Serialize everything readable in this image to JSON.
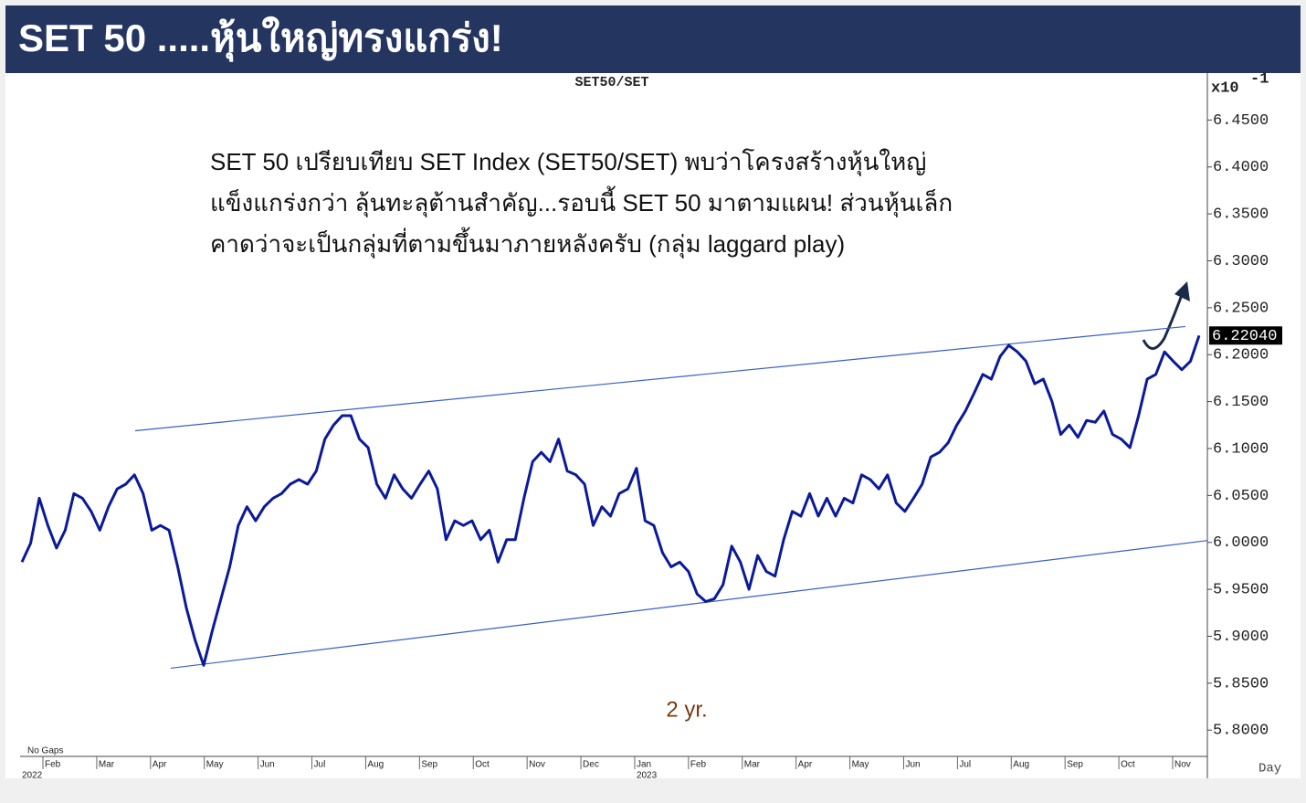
{
  "header": {
    "title": "SET 50 .....หุ้นใหญ่ทรงแกร่ง!"
  },
  "chart_data": {
    "type": "line",
    "title": "SET50/SET",
    "annotation_lines": [
      "SET 50 เปรียบเทียบ SET Index (SET50/SET) พบว่าโครงสร้างหุ้นใหญ่",
      "แข็งแกร่งกว่า ลุ้นทะลุต้านสำคัญ...รอบนี้ SET 50 มาตามแผน! ส่วนหุ้นเล็ก",
      "คาดว่าจะเป็นกลุ่มที่ตามขึ้นมาภายหลังครับ (กลุ่ม laggard play)"
    ],
    "period_label": "2 yr.",
    "gaps_label": "No Gaps",
    "x_unit_label": "Day",
    "axis_multiplier": "x10",
    "axis_exponent": "-1",
    "months": [
      "Feb",
      "Mar",
      "Apr",
      "May",
      "Jun",
      "Jul",
      "Aug",
      "Sep",
      "Oct",
      "Nov",
      "Dec",
      "Jan",
      "Feb",
      "Mar",
      "Apr",
      "May",
      "Jun",
      "Jul",
      "Aug",
      "Sep",
      "Oct",
      "Nov"
    ],
    "years": [
      "2022",
      "2023"
    ],
    "color": "#0a1a9a",
    "trendline_color": "#3a5fc8",
    "values": [
      5.979,
      5.999,
      6.047,
      6.018,
      5.994,
      6.013,
      6.052,
      6.047,
      6.033,
      6.013,
      6.038,
      6.057,
      6.062,
      6.072,
      6.052,
      6.013,
      6.018,
      6.013,
      5.974,
      5.93,
      5.896,
      5.869,
      5.906,
      5.94,
      5.974,
      6.018,
      6.038,
      6.023,
      6.038,
      6.047,
      6.052,
      6.062,
      6.067,
      6.062,
      6.076,
      6.11,
      6.125,
      6.135,
      6.135,
      6.11,
      6.101,
      6.062,
      6.047,
      6.072,
      6.057,
      6.047,
      6.062,
      6.076,
      6.057,
      6.003,
      6.023,
      6.018,
      6.023,
      6.003,
      6.013,
      5.979,
      6.003,
      6.003,
      6.047,
      6.086,
      6.096,
      6.086,
      6.11,
      6.076,
      6.072,
      6.062,
      6.018,
      6.038,
      6.028,
      6.052,
      6.057,
      6.079,
      6.023,
      6.018,
      5.989,
      5.974,
      5.979,
      5.969,
      5.945,
      5.937,
      5.94,
      5.955,
      5.996,
      5.979,
      5.95,
      5.986,
      5.969,
      5.964,
      6.003,
      6.033,
      6.028,
      6.052,
      6.028,
      6.047,
      6.028,
      6.047,
      6.042,
      6.072,
      6.067,
      6.057,
      6.072,
      6.042,
      6.033,
      6.047,
      6.062,
      6.091,
      6.096,
      6.106,
      6.125,
      6.14,
      6.159,
      6.179,
      6.174,
      6.198,
      6.21,
      6.203,
      6.193,
      6.169,
      6.174,
      6.15,
      6.115,
      6.125,
      6.112,
      6.13,
      6.128,
      6.14,
      6.115,
      6.11,
      6.101,
      6.135,
      6.174,
      6.179,
      6.203,
      6.193,
      6.184,
      6.193,
      6.2204
    ],
    "last_label": {
      "value": 6.2204,
      "label": "6.22040"
    },
    "trendlines": [
      {
        "start": 6.119,
        "end": 6.23
      },
      {
        "start": 5.866,
        "end": 6.002
      }
    ],
    "ylim": [
      5.772,
      6.5
    ],
    "yticks": [
      {
        "value": 5.8,
        "label": "5.8000"
      },
      {
        "value": 5.85,
        "label": "5.8500"
      },
      {
        "value": 5.9,
        "label": "5.9000"
      },
      {
        "value": 5.95,
        "label": "5.9500"
      },
      {
        "value": 6.0,
        "label": "6.0000"
      },
      {
        "value": 6.05,
        "label": "6.0500"
      },
      {
        "value": 6.1,
        "label": "6.1000"
      },
      {
        "value": 6.15,
        "label": "6.1500"
      },
      {
        "value": 6.2,
        "label": "6.2000"
      },
      {
        "value": 6.25,
        "label": "6.2500"
      },
      {
        "value": 6.3,
        "label": "6.3000"
      },
      {
        "value": 6.35,
        "label": "6.3500"
      },
      {
        "value": 6.4,
        "label": "6.4000"
      },
      {
        "value": 6.45,
        "label": "6.4500"
      }
    ]
  }
}
